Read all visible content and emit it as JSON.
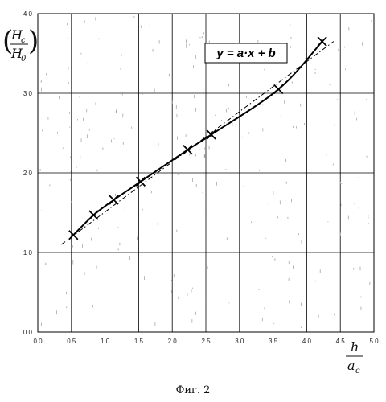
{
  "chart_data": {
    "type": "line",
    "title": "",
    "xlim": [
      0.0,
      5.0
    ],
    "ylim": [
      0.0,
      4.0
    ],
    "x_ticks": [
      0.0,
      0.5,
      1.0,
      1.5,
      2.0,
      2.5,
      3.0,
      3.5,
      4.0,
      4.5,
      5.0
    ],
    "x_tick_labels": [
      "0 0",
      "0 5",
      "1 0",
      "1 5",
      "2 0",
      "2 5",
      "3 0",
      "3 5",
      "4 0",
      "4 5",
      "5 0"
    ],
    "y_ticks": [
      0.0,
      1.0,
      2.0,
      3.0,
      4.0
    ],
    "y_tick_labels": [
      "0 0",
      "1 0",
      "2 0",
      "3 0",
      "4 0"
    ],
    "grid": true,
    "xlabel": {
      "numerator": "h",
      "denominator": "a",
      "subscript": "c"
    },
    "ylabel": {
      "open": "(",
      "close": ")",
      "numerator": "H",
      "numerator_subscript": "c",
      "denominator": "H",
      "denominator_subscript": "0"
    },
    "series": [
      {
        "type": "measured",
        "x": [
          0.53,
          0.83,
          1.13,
          1.53,
          2.23,
          2.58,
          3.58,
          4.23
        ],
        "y": [
          1.22,
          1.47,
          1.66,
          1.89,
          2.29,
          2.48,
          3.05,
          3.65
        ]
      }
    ],
    "fit": {
      "kind": "linear",
      "equation": "y = a·x + b",
      "x": [
        0.35,
        4.4
      ],
      "y": [
        1.1,
        3.65
      ]
    },
    "caption": "Фиг. 2"
  }
}
